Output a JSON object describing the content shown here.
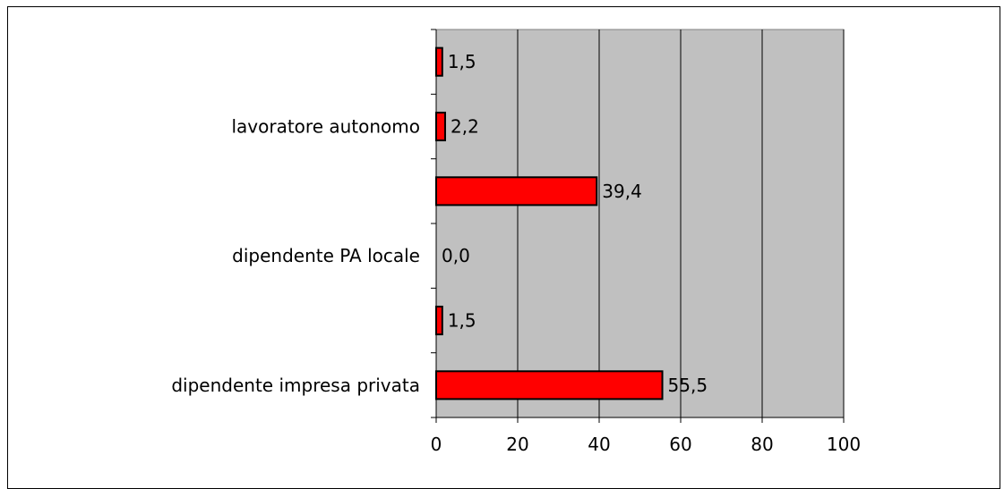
{
  "chart_data": {
    "type": "bar",
    "orientation": "horizontal",
    "categories": [
      "dipendente impresa privata",
      "",
      "dipendente PA locale",
      "",
      "lavoratore autonomo",
      ""
    ],
    "values": [
      55.5,
      1.5,
      0.0,
      39.4,
      2.2,
      1.5
    ],
    "value_labels": [
      "55,5",
      "1,5",
      "0,0",
      "39,4",
      "2,2",
      "1,5"
    ],
    "xlim": [
      0,
      100
    ],
    "x_ticks": [
      0,
      20,
      40,
      60,
      80,
      100
    ],
    "x_tick_labels": [
      "0",
      "20",
      "40",
      "60",
      "80",
      "100"
    ],
    "title": "",
    "xlabel": "",
    "ylabel": "",
    "grid": "vertical",
    "legend": "none",
    "colors": {
      "bar_fill": "#ff0000",
      "bar_stroke": "#000000",
      "plot_background": "#c0c0c0",
      "gridline": "#000000"
    }
  }
}
